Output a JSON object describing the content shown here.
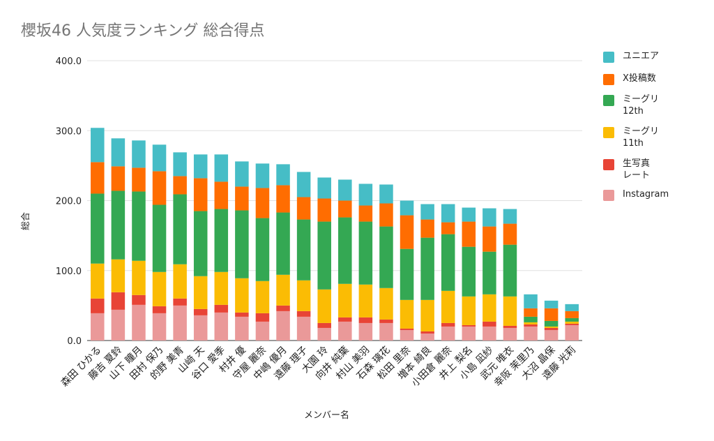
{
  "title": "櫻坂46 人気度ランキング 総合得点",
  "colors": {
    "Instagram": "#ea9999",
    "生写真レート": "#e84436",
    "ミーグリ11th": "#fbbc04",
    "ミーグリ12th": "#34a853",
    "X投稿数": "#ff6d01",
    "ユニエア": "#46bdc6",
    "grid": "#e0e0e0",
    "axis": "#333333",
    "text": "#222222"
  },
  "legend": [
    {
      "name": "ユニエア",
      "label": "ユニエア",
      "color": "#46bdc6"
    },
    {
      "name": "X投稿数",
      "label": "X投稿数",
      "color": "#ff6d01"
    },
    {
      "name": "ミーグリ12th",
      "label": "ミーグリ\n12th",
      "color": "#34a853"
    },
    {
      "name": "ミーグリ11th",
      "label": "ミーグリ\n11th",
      "color": "#fbbc04"
    },
    {
      "name": "生写真レート",
      "label": "生写真\nレート",
      "color": "#e84436"
    },
    {
      "name": "Instagram",
      "label": "Instagram",
      "color": "#ea9999"
    }
  ],
  "chart_data": {
    "type": "bar",
    "stacked": true,
    "title": "櫻坂46 人気度ランキング 総合得点",
    "xlabel": "メンバー名",
    "ylabel": "総合",
    "ylim": [
      0,
      400
    ],
    "yticks": [
      "0.0",
      "100.0",
      "200.0",
      "300.0",
      "400.0"
    ],
    "grid": true,
    "legend_position": "right",
    "categories": [
      "森田 ひかる",
      "藤吉 夏鈴",
      "山下 瞳月",
      "田村 保乃",
      "的野 美青",
      "山﨑 天",
      "谷口 愛季",
      "村井 優",
      "守屋 麗奈",
      "中嶋 優月",
      "遠藤 理子",
      "大園 玲",
      "向井 純葉",
      "村山 美羽",
      "石森 璃花",
      "松田 里奈",
      "増本 綺良",
      "小田倉 麗奈",
      "井上 梨名",
      "小島 凪紗",
      "武元 唯衣",
      "幸阪 茉里乃",
      "大沼 晶保",
      "遠藤 光莉"
    ],
    "series": [
      {
        "name": "Instagram",
        "values": [
          39,
          44,
          51,
          39,
          50,
          36,
          40,
          34,
          27,
          42,
          34,
          18,
          27,
          25,
          25,
          15,
          10,
          20,
          20,
          20,
          18,
          20,
          15,
          22
        ]
      },
      {
        "name": "生写真レート",
        "values": [
          21,
          25,
          14,
          10,
          10,
          9,
          11,
          6,
          12,
          8,
          8,
          7,
          6,
          8,
          5,
          2,
          3,
          5,
          2,
          7,
          3,
          3,
          3,
          2
        ]
      },
      {
        "name": "ミーグリ11th",
        "values": [
          50,
          47,
          49,
          49,
          49,
          47,
          47,
          49,
          46,
          44,
          44,
          48,
          48,
          47,
          45,
          41,
          45,
          46,
          41,
          39,
          42,
          3,
          2,
          3
        ]
      },
      {
        "name": "ミーグリ12th",
        "values": [
          100,
          98,
          99,
          96,
          100,
          93,
          90,
          97,
          90,
          89,
          87,
          97,
          95,
          90,
          88,
          73,
          89,
          81,
          71,
          61,
          74,
          8,
          8,
          5
        ]
      },
      {
        "name": "X投稿数",
        "values": [
          45,
          35,
          34,
          48,
          26,
          47,
          39,
          34,
          43,
          39,
          32,
          33,
          24,
          23,
          33,
          48,
          26,
          17,
          36,
          36,
          30,
          12,
          18,
          10
        ]
      },
      {
        "name": "ユニエア",
        "values": [
          49,
          40,
          39,
          38,
          34,
          34,
          39,
          36,
          35,
          30,
          36,
          30,
          30,
          31,
          27,
          21,
          22,
          26,
          20,
          26,
          21,
          20,
          11,
          10
        ]
      }
    ]
  }
}
